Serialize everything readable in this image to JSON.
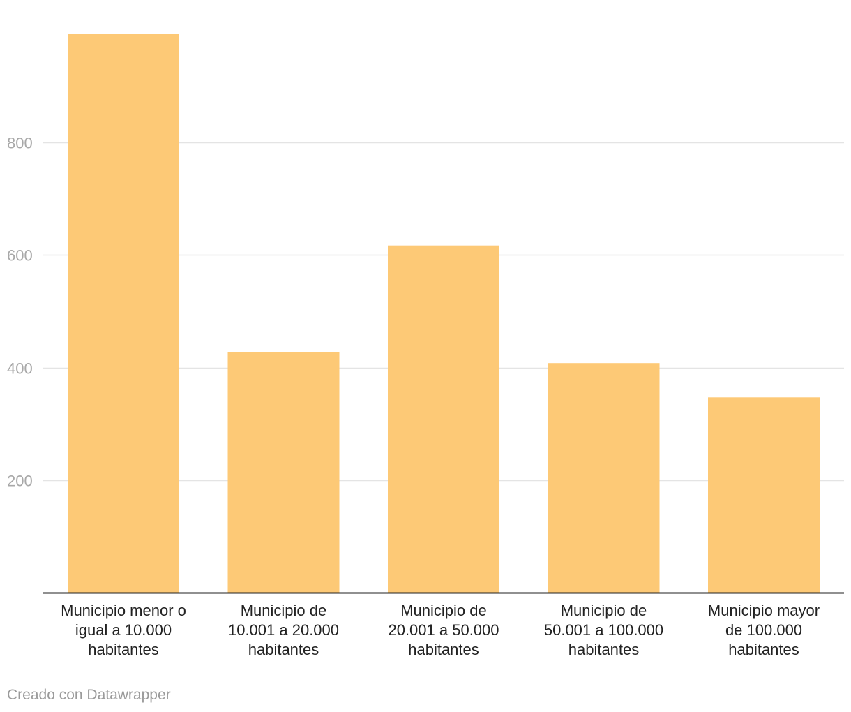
{
  "chart_data": {
    "type": "bar",
    "title": "",
    "xlabel": "",
    "ylabel": "",
    "categories": [
      [
        "Municipio menor o",
        "igual a 10.000",
        "habitantes"
      ],
      [
        "Municipio de",
        "10.001 a 20.000",
        "habitantes"
      ],
      [
        "Municipio de",
        "20.001 a 50.000",
        "habitantes"
      ],
      [
        "Municipio de",
        "50.001 a 100.000",
        "habitantes"
      ],
      [
        "Municipio mayor",
        "de 100.000",
        "habitantes"
      ]
    ],
    "values": [
      993,
      428,
      617,
      408,
      347
    ],
    "ylim": [
      0,
      1000
    ],
    "yticks": [
      200,
      400,
      600,
      800
    ],
    "grid": true,
    "bar_color": "#fdc976",
    "grid_color": "#e4e4e4",
    "baseline_color": "#222222",
    "tick_label_color": "#a8a8a8"
  },
  "footer": {
    "credit": "Creado con Datawrapper"
  }
}
